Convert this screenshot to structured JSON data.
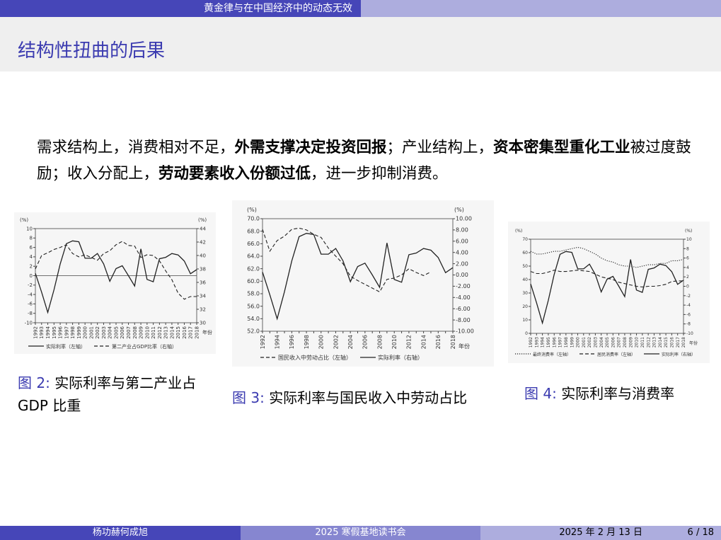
{
  "header": {
    "title": "黄金律与在中国经济中的动态无效"
  },
  "slide": {
    "title": "结构性扭曲的后果"
  },
  "body": {
    "parts": [
      {
        "text": "需求结构上，消费相对不足，",
        "bold": false
      },
      {
        "text": "外需支撑决定投资回报",
        "bold": true
      },
      {
        "text": "；产业结构上，",
        "bold": false
      },
      {
        "text": "资本密集型重化工业",
        "bold": true
      },
      {
        "text": "被过度鼓励；收入分配上，",
        "bold": false
      },
      {
        "text": "劳动要素收入份额过低",
        "bold": true
      },
      {
        "text": "，进一步抑制消费。",
        "bold": false
      }
    ]
  },
  "captions": [
    {
      "num": "图 2:",
      "text": "实际利率与第二产业占 GDP 比重"
    },
    {
      "num": "图 3:",
      "text": "实际利率与国民收入中劳动占比"
    },
    {
      "num": "图 4:",
      "text": "实际利率与消费率"
    }
  ],
  "chart_data": [
    {
      "type": "line",
      "xlabel": "年份",
      "ylabel_left": "(%)",
      "ylabel_right": "(%)",
      "x": [
        1992,
        1993,
        1994,
        1995,
        1996,
        1997,
        1998,
        1999,
        2000,
        2001,
        2002,
        2003,
        2004,
        2005,
        2006,
        2007,
        2008,
        2009,
        2010,
        2011,
        2012,
        2013,
        2014,
        2015,
        2016,
        2017,
        2018
      ],
      "x_ticks": [
        "1992",
        "1993",
        "1994",
        "1995",
        "1996",
        "1997",
        "1998",
        "1999",
        "2000",
        "2001",
        "2002",
        "2003",
        "2004",
        "2005",
        "2006",
        "2007",
        "2008",
        "2009",
        "2010",
        "2011",
        "2012",
        "2013",
        "2014",
        "2015",
        "2016",
        "2017",
        "2018"
      ],
      "ylim_left": [
        -10,
        10
      ],
      "yticks_left": [
        -10,
        -8,
        -6,
        -4,
        -2,
        0,
        2,
        4,
        6,
        8,
        10
      ],
      "ylim_right": [
        30,
        44
      ],
      "yticks_right": [
        30,
        32,
        34,
        36,
        38,
        40,
        42,
        44
      ],
      "zero_line": true,
      "series": [
        {
          "name": "实际利率（左轴）",
          "axis": "left",
          "style": "solid",
          "values": [
            0.5,
            -3.5,
            -7.8,
            -3,
            2.5,
            6.8,
            7.4,
            7.2,
            3.7,
            3.7,
            4.7,
            2.5,
            -1.2,
            1.5,
            2.1,
            0,
            -2.2,
            5.7,
            -0.8,
            -1.3,
            3.6,
            3.9,
            4.7,
            4.4,
            3.1,
            0.4,
            1.3
          ]
        },
        {
          "name": "第二产业占GDP比率（右轴）",
          "axis": "right",
          "style": "dashed",
          "values": [
            38,
            40,
            40.4,
            40.9,
            41.2,
            41.6,
            40.3,
            39.8,
            40.1,
            39.7,
            39.3,
            40.3,
            40.7,
            41.6,
            42.1,
            41.5,
            41.4,
            39.7,
            40.1,
            40,
            39.2,
            37.7,
            36.4,
            34.4,
            33.5,
            33.9,
            33.9
          ]
        }
      ]
    },
    {
      "type": "line",
      "xlabel": "年份",
      "ylabel_left": "(%)",
      "ylabel_right": "(%)",
      "x": [
        1992,
        1993,
        1994,
        1995,
        1996,
        1997,
        1998,
        1999,
        2000,
        2001,
        2002,
        2003,
        2004,
        2005,
        2006,
        2007,
        2008,
        2009,
        2010,
        2011,
        2012,
        2013,
        2014,
        2015,
        2016,
        2017,
        2018
      ],
      "x_ticks": [
        "1992",
        "",
        "1994",
        "",
        "1996",
        "",
        "1998",
        "",
        "2000",
        "",
        "2002",
        "",
        "2004",
        "",
        "2006",
        "",
        "2008",
        "",
        "2010",
        "",
        "2012",
        "",
        "2014",
        "",
        "2016",
        "",
        "2018"
      ],
      "ylim_left": [
        52,
        70
      ],
      "yticks_left": [
        "52.0",
        "54.0",
        "56.0",
        "58.0",
        "60.0",
        "62.0",
        "64.0",
        "66.0",
        "68.0",
        "70.0"
      ],
      "ylim_right": [
        -10,
        10
      ],
      "yticks_right": [
        "-10.00",
        "-8.00",
        "-6.00",
        "-4.00",
        "-2.00",
        "0.00",
        "2.00",
        "4.00",
        "6.00",
        "8.00",
        "10.00"
      ],
      "zero_line": false,
      "series": [
        {
          "name": "国民收入中劳动占比（左轴）",
          "axis": "left",
          "style": "dashed",
          "values": [
            68.3,
            64.8,
            66.5,
            67.2,
            68.3,
            68.5,
            68.2,
            67.5,
            67.0,
            65.3,
            64.0,
            62.8,
            60.8,
            60.1,
            59.5,
            58.9,
            58.3,
            60.3,
            60.5,
            61.0,
            62.0,
            61.4,
            60.9,
            61.5,
            null,
            null,
            null
          ]
        },
        {
          "name": "实际利率（右轴）",
          "axis": "right",
          "style": "solid",
          "values": [
            0.5,
            -3.5,
            -7.8,
            -3,
            2.5,
            6.8,
            7.4,
            7.2,
            3.7,
            3.7,
            4.7,
            2.5,
            -1.2,
            1.5,
            2.1,
            0,
            -2.2,
            5.7,
            -0.8,
            -1.3,
            3.6,
            3.9,
            4.7,
            4.4,
            3.1,
            0.4,
            1.3
          ]
        }
      ]
    },
    {
      "type": "line",
      "xlabel": "年份",
      "ylabel_left": "(%)",
      "ylabel_right": "(%)",
      "x": [
        1992,
        1993,
        1994,
        1995,
        1996,
        1997,
        1998,
        1999,
        2000,
        2001,
        2002,
        2003,
        2004,
        2005,
        2006,
        2007,
        2008,
        2009,
        2010,
        2011,
        2012,
        2013,
        2014,
        2015,
        2016,
        2017,
        2018
      ],
      "x_ticks": [
        "1992",
        "1993",
        "1994",
        "1995",
        "1996",
        "1997",
        "1998",
        "1999",
        "2000",
        "2001",
        "2002",
        "2003",
        "2004",
        "2005",
        "2006",
        "2007",
        "2008",
        "2009",
        "2010",
        "2011",
        "2012",
        "2013",
        "2014",
        "2015",
        "2016",
        "2017",
        "2018"
      ],
      "ylim_left": [
        0,
        70
      ],
      "yticks_left": [
        0,
        10,
        20,
        30,
        40,
        50,
        60,
        70
      ],
      "ylim_right": [
        -10,
        10
      ],
      "yticks_right": [
        -10,
        -8,
        -6,
        -4,
        -2,
        0,
        2,
        4,
        6,
        8,
        10
      ],
      "zero_line": false,
      "series": [
        {
          "name": "最终消费率（左轴）",
          "axis": "left",
          "style": "dotted",
          "values": [
            61,
            59,
            59,
            60,
            61,
            61,
            62,
            63,
            64,
            63,
            61,
            59,
            56,
            54,
            53,
            51,
            50,
            50,
            49,
            50,
            51,
            51,
            52,
            52,
            54,
            54,
            55
          ]
        },
        {
          "name": "居民消费率（左轴）",
          "axis": "left",
          "style": "dashed",
          "values": [
            46,
            44.5,
            44.5,
            45.5,
            47,
            46,
            46,
            46.5,
            47,
            46.5,
            46,
            44,
            42,
            41,
            40,
            38,
            37,
            36,
            35,
            34.5,
            35,
            35,
            35.5,
            36.5,
            38.5,
            39,
            39
          ]
        },
        {
          "name": "实际利率（右轴）",
          "axis": "right",
          "style": "solid",
          "values": [
            0.5,
            -3.5,
            -7.8,
            -3,
            2.5,
            6.8,
            7.4,
            7.2,
            3.7,
            3.7,
            4.7,
            2.5,
            -1.2,
            1.5,
            2.1,
            0,
            -2.2,
            5.7,
            -0.8,
            -1.3,
            3.6,
            3.9,
            4.7,
            4.4,
            3.1,
            0.4,
            1.3
          ]
        }
      ]
    }
  ],
  "footer": {
    "author": "杨功赫何成旭",
    "event": "2025 寒假基地读书会",
    "date": "2025 年 2 月 13 日",
    "page": "6 / 18"
  }
}
